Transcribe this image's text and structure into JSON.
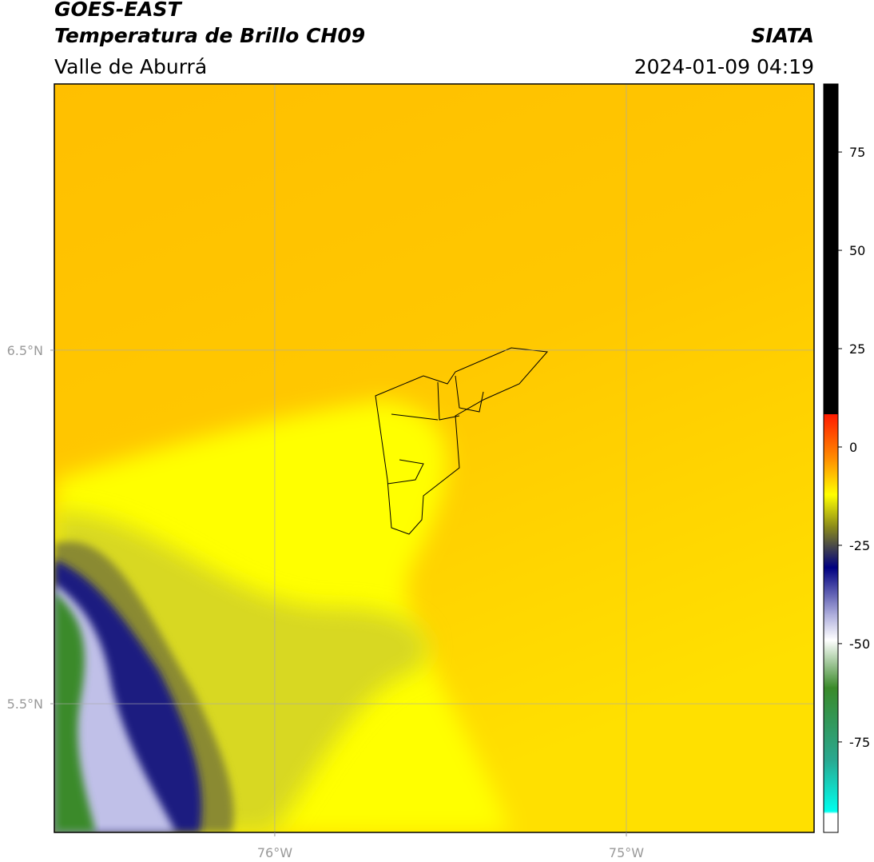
{
  "header": {
    "title": "GOES-EAST",
    "subtitle": "Temperatura de Brillo CH09",
    "source": "SIATA",
    "region": "Valle de Aburrá",
    "datetime": "2024-01-09 04:19"
  },
  "map": {
    "xlim": [
      -76.627,
      -74.466
    ],
    "ylim": [
      5.136,
      7.253
    ],
    "xticks": [
      {
        "value": -76,
        "label": "76°W"
      },
      {
        "value": -75,
        "label": "75°W"
      }
    ],
    "yticks": [
      {
        "value": 6.5,
        "label": "6.5°N"
      },
      {
        "value": 5.5,
        "label": "5.5°N"
      }
    ]
  },
  "colorbar": {
    "lim": [
      -98,
      92.3
    ],
    "ticks": [
      75,
      50,
      25,
      0,
      -25,
      -50,
      -75
    ]
  }
}
